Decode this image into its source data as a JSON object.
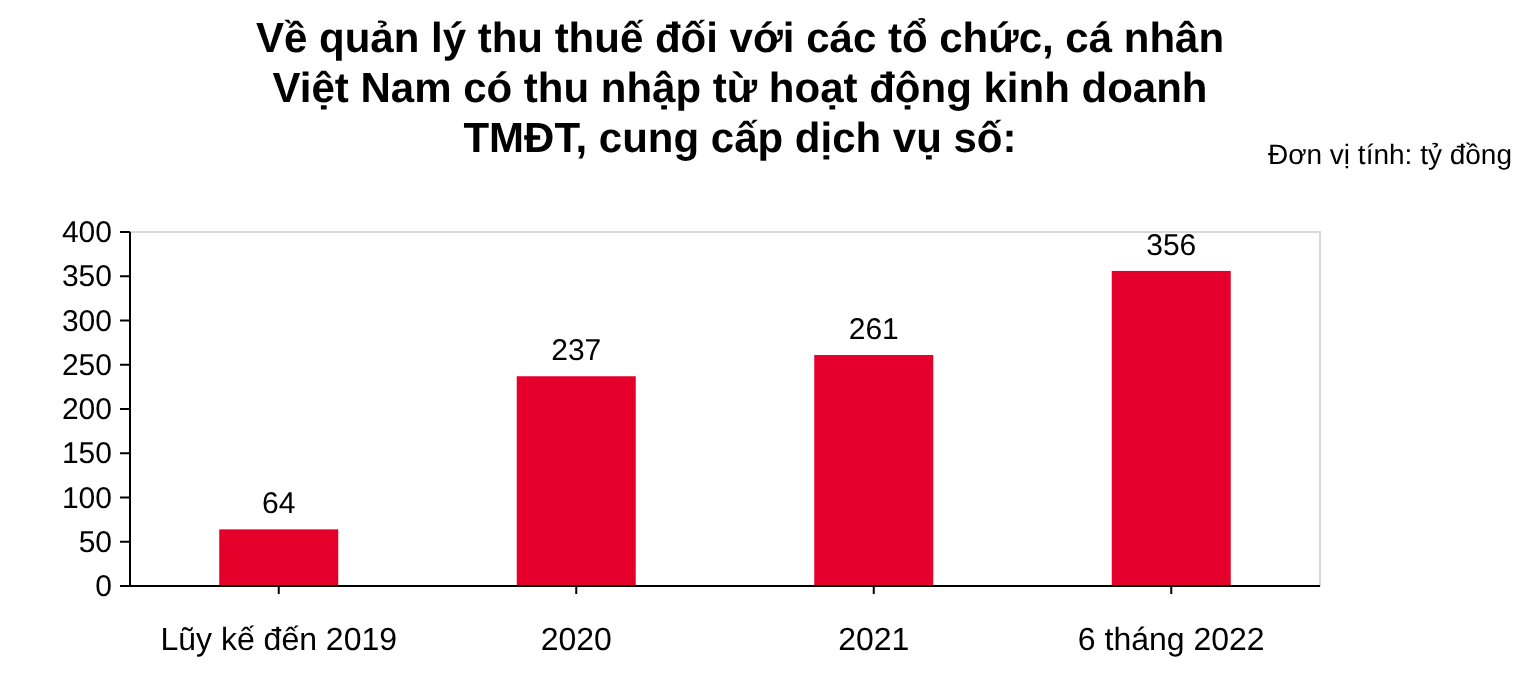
{
  "chart_data": {
    "type": "bar",
    "title": "Về quản lý thu thuế đối với các tổ chức, cá nhân\nViệt Nam có thu nhập từ hoạt động kinh doanh\nTMĐT, cung cấp dịch vụ số:",
    "annotations": [
      "Đơn vị tính: tỷ đồng"
    ],
    "categories": [
      "Lũy kế đến 2019",
      "2020",
      "2021",
      "6 tháng 2022"
    ],
    "values": [
      64,
      237,
      261,
      356
    ],
    "color": "#e4002b",
    "ylim": [
      0,
      400
    ],
    "yticks": [
      0,
      50,
      100,
      150,
      200,
      250,
      300,
      350,
      400
    ],
    "grid": false,
    "data_labels": true
  }
}
